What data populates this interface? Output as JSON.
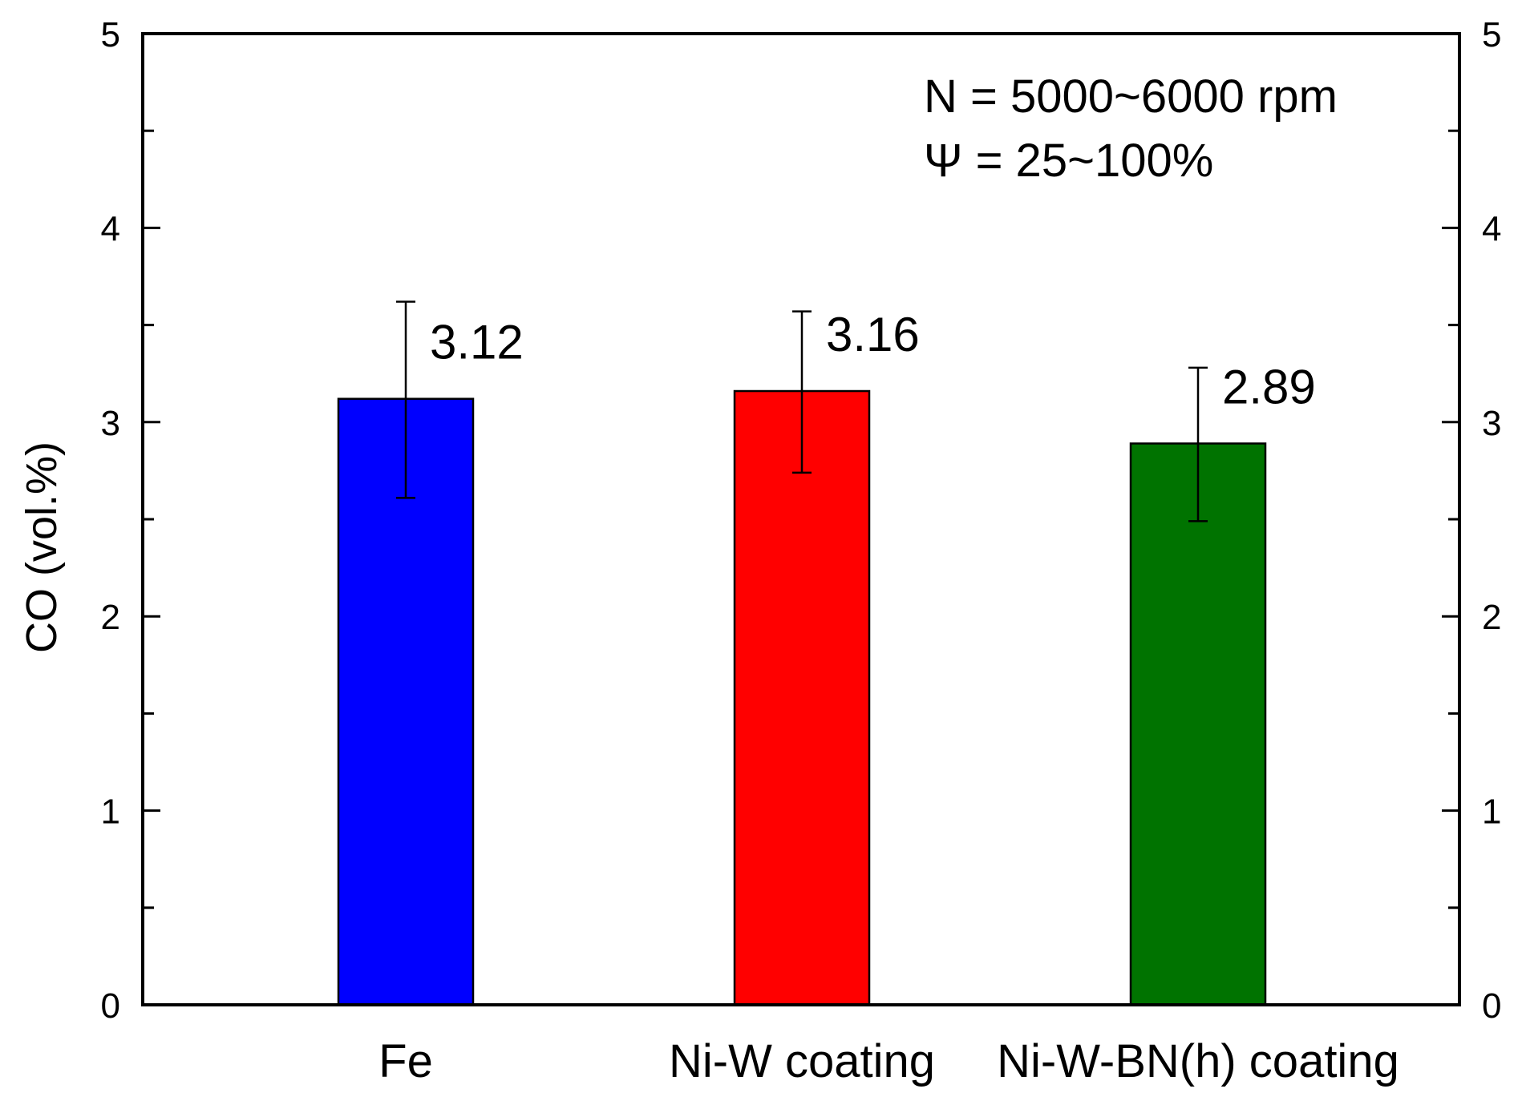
{
  "chart_data": {
    "type": "bar",
    "title": "",
    "xlabel": "",
    "ylabel": "CO (vol.%)",
    "ylim": [
      0,
      5
    ],
    "yticks": [
      "0",
      "1",
      "2",
      "3",
      "4",
      "5"
    ],
    "categories": [
      "Fe",
      "Ni-W coating",
      "Ni-W-BN(h) coating"
    ],
    "values": [
      3.12,
      3.16,
      2.89
    ],
    "value_labels": [
      "3.12",
      "3.16",
      "2.89"
    ],
    "error_upper": [
      3.62,
      3.57,
      3.28
    ],
    "error_lower": [
      2.61,
      2.74,
      2.49
    ],
    "colors": [
      "#0000ff",
      "#ff0000",
      "#007300"
    ],
    "annotations": [
      "N = 5000~6000 rpm",
      "Ψ = 25~100%"
    ],
    "grid": false,
    "legend": "none",
    "mirror_y_axis_right": true
  }
}
